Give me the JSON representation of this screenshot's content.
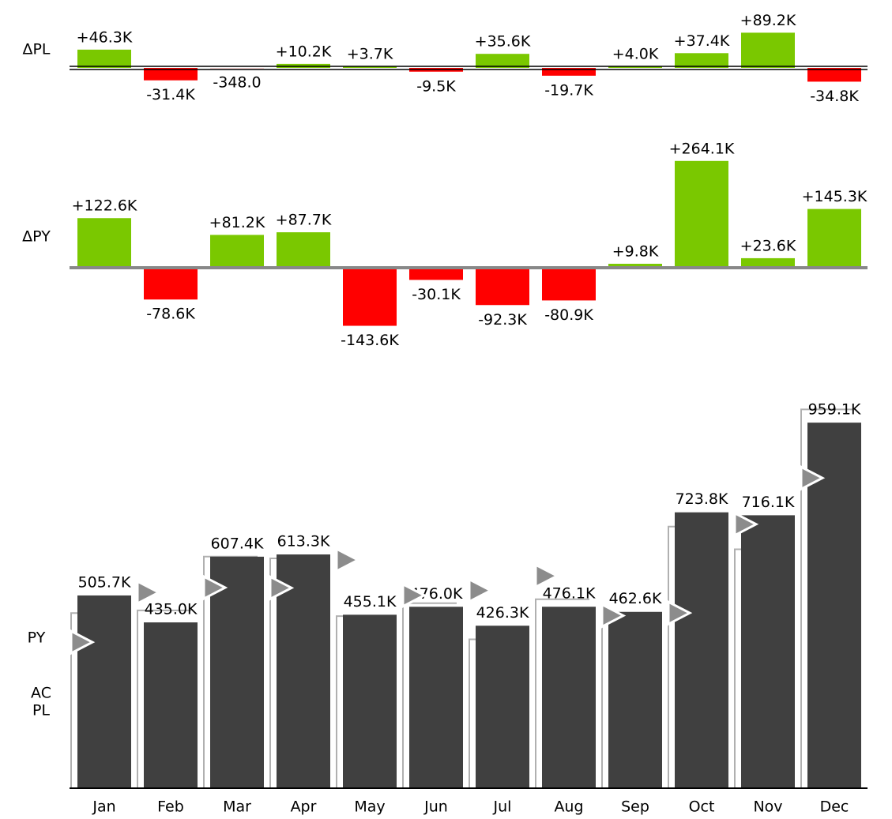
{
  "chart_data": [
    {
      "type": "variance",
      "name": "ΔPL",
      "positive_color": "#7ac800",
      "negative_color": "#ff0000",
      "values": [
        46300,
        -31400,
        -348,
        10200,
        3700,
        -9500,
        35600,
        -19700,
        4000,
        37400,
        89200,
        -34800
      ],
      "value_labels": [
        "+46.3K",
        "-31.4K",
        "-348.0",
        "+10.2K",
        "+3.7K",
        "-9.5K",
        "+35.6K",
        "-19.7K",
        "+4.0K",
        "+37.4K",
        "+89.2K",
        "-34.8K"
      ]
    },
    {
      "type": "variance",
      "name": "ΔPY",
      "positive_color": "#7ac800",
      "negative_color": "#ff0000",
      "values": [
        122600,
        -78600,
        81200,
        87700,
        -143600,
        -30100,
        -92300,
        -80900,
        9800,
        264100,
        23600,
        145300
      ],
      "value_labels": [
        "+122.6K",
        "-78.6K",
        "+81.2K",
        "+87.7K",
        "-143.6K",
        "-30.1K",
        "-92.3K",
        "-80.9K",
        "+9.8K",
        "+264.1K",
        "+23.6K",
        "+145.3K"
      ]
    },
    {
      "type": "bar",
      "categories": [
        "Jan",
        "Feb",
        "Mar",
        "Apr",
        "May",
        "Jun",
        "Jul",
        "Aug",
        "Sep",
        "Oct",
        "Nov",
        "Dec"
      ],
      "series": [
        {
          "name": "AC",
          "color": "#404040",
          "values": [
            505700,
            435000,
            607400,
            613300,
            455100,
            476000,
            426300,
            476100,
            462600,
            723800,
            716100,
            959100
          ],
          "value_labels": [
            "505.7K",
            "435.0K",
            "607.4K",
            "613.3K",
            "455.1K",
            "476.0K",
            "426.3K",
            "476.1K",
            "462.6K",
            "723.8K",
            "716.1K",
            "959.1K"
          ]
        },
        {
          "name": "PL",
          "color": "#b0b0b0",
          "values": [
            459400,
            466400,
            607748,
            603100,
            451400,
            485500,
            390700,
            495800,
            458600,
            686400,
            626900,
            993900
          ]
        },
        {
          "name": "PY",
          "color": "#8c8c8c",
          "values": [
            383100,
            513600,
            526200,
            525600,
            598700,
            506100,
            518600,
            557000,
            452800,
            459700,
            692500,
            813800
          ]
        }
      ]
    }
  ]
}
